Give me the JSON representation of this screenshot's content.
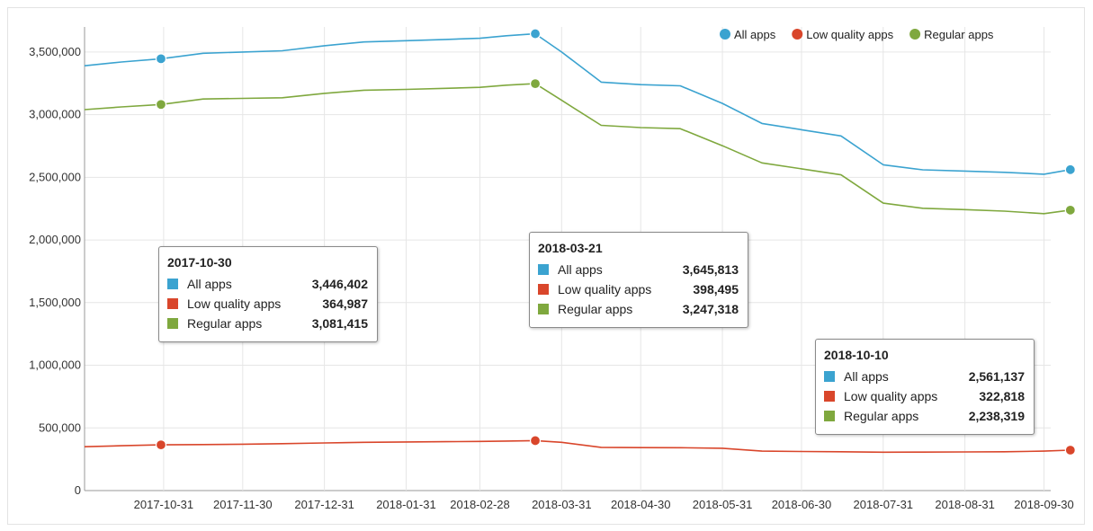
{
  "chart_data": {
    "type": "line",
    "x": [
      "2017-10-01",
      "2017-10-15",
      "2017-10-30",
      "2017-11-15",
      "2017-11-30",
      "2017-12-15",
      "2017-12-31",
      "2018-01-15",
      "2018-01-31",
      "2018-02-15",
      "2018-02-28",
      "2018-03-10",
      "2018-03-21",
      "2018-03-31",
      "2018-04-15",
      "2018-04-30",
      "2018-05-15",
      "2018-05-31",
      "2018-06-15",
      "2018-06-30",
      "2018-07-15",
      "2018-07-31",
      "2018-08-15",
      "2018-08-31",
      "2018-09-15",
      "2018-09-30",
      "2018-10-10"
    ],
    "series": [
      {
        "name": "All apps",
        "color": "#3ba3d0",
        "values": [
          3390000,
          3420000,
          3446402,
          3490000,
          3500000,
          3510000,
          3550000,
          3580000,
          3590000,
          3600000,
          3610000,
          3630000,
          3645813,
          3500000,
          3260000,
          3240000,
          3230000,
          3090000,
          2930000,
          2880000,
          2830000,
          2600000,
          2560000,
          2550000,
          2540000,
          2525000,
          2561137
        ]
      },
      {
        "name": "Low quality apps",
        "color": "#d9462b",
        "values": [
          350000,
          358000,
          364987,
          367000,
          370000,
          374000,
          380000,
          385000,
          388000,
          390000,
          392000,
          395000,
          398495,
          385000,
          345000,
          343000,
          342000,
          338000,
          315000,
          312000,
          310000,
          306000,
          307000,
          308000,
          310000,
          315000,
          322818
        ]
      },
      {
        "name": "Regular apps",
        "color": "#7fa83e",
        "values": [
          3040000,
          3062000,
          3081415,
          3125000,
          3130000,
          3135000,
          3170000,
          3195000,
          3202000,
          3210000,
          3218000,
          3235000,
          3247318,
          3115000,
          2915000,
          2897000,
          2888000,
          2752000,
          2615000,
          2568000,
          2520000,
          2294000,
          2253000,
          2242000,
          2230000,
          2210000,
          2238319
        ]
      }
    ],
    "x_ticks": [
      "2017-10-31",
      "2017-11-30",
      "2017-12-31",
      "2018-01-31",
      "2018-02-28",
      "2018-03-31",
      "2018-04-30",
      "2018-05-31",
      "2018-06-30",
      "2018-07-31",
      "2018-08-31",
      "2018-09-30"
    ],
    "y_ticks": [
      0,
      500000,
      1000000,
      1500000,
      2000000,
      2500000,
      3000000,
      3500000
    ],
    "y_tick_labels": [
      "0",
      "500,000",
      "1,000,000",
      "1,500,000",
      "2,000,000",
      "2,500,000",
      "3,000,000",
      "3,500,000"
    ],
    "ylim": [
      0,
      3700000
    ],
    "grid": true,
    "legend_placement": "top-right",
    "highlight_dates": [
      "2017-10-30",
      "2018-03-21",
      "2018-10-10"
    ],
    "tooltips": [
      {
        "date": "2017-10-30",
        "rows": [
          {
            "name": "All apps",
            "value": "3,446,402",
            "color": "#3ba3d0"
          },
          {
            "name": "Low quality apps",
            "value": "364,987",
            "color": "#d9462b"
          },
          {
            "name": "Regular apps",
            "value": "3,081,415",
            "color": "#7fa83e"
          }
        ]
      },
      {
        "date": "2018-03-21",
        "rows": [
          {
            "name": "All apps",
            "value": "3,645,813",
            "color": "#3ba3d0"
          },
          {
            "name": "Low quality apps",
            "value": "398,495",
            "color": "#d9462b"
          },
          {
            "name": "Regular apps",
            "value": "3,247,318",
            "color": "#7fa83e"
          }
        ]
      },
      {
        "date": "2018-10-10",
        "rows": [
          {
            "name": "All apps",
            "value": "2,561,137",
            "color": "#3ba3d0"
          },
          {
            "name": "Low quality apps",
            "value": "322,818",
            "color": "#d9462b"
          },
          {
            "name": "Regular apps",
            "value": "2,238,319",
            "color": "#7fa83e"
          }
        ]
      }
    ]
  }
}
